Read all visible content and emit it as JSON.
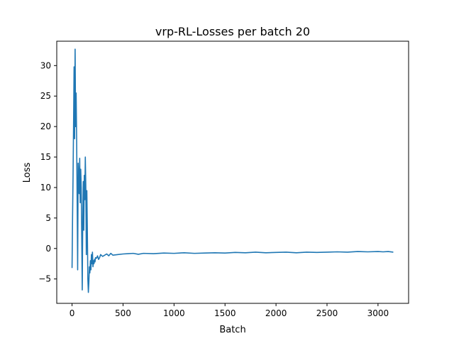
{
  "chart_data": {
    "type": "line",
    "title": "vrp-RL-Losses per batch 20",
    "xlabel": "Batch",
    "ylabel": "Loss",
    "xlim": [
      -150,
      3300
    ],
    "ylim": [
      -9,
      34
    ],
    "xticks": [
      0,
      500,
      1000,
      1500,
      2000,
      2500,
      3000
    ],
    "yticks": [
      -5,
      0,
      5,
      10,
      15,
      20,
      25,
      30
    ],
    "grid": false,
    "legend": "none",
    "series": [
      {
        "color": "#1f77b4",
        "x": [
          0,
          5,
          10,
          15,
          20,
          25,
          30,
          35,
          40,
          45,
          50,
          55,
          60,
          65,
          70,
          75,
          80,
          85,
          90,
          95,
          100,
          105,
          110,
          115,
          120,
          125,
          130,
          135,
          140,
          145,
          150,
          155,
          160,
          165,
          170,
          175,
          180,
          185,
          190,
          195,
          200,
          205,
          210,
          215,
          220,
          225,
          230,
          240,
          250,
          260,
          270,
          280,
          300,
          320,
          340,
          360,
          380,
          400,
          450,
          500,
          550,
          600,
          650,
          700,
          800,
          900,
          1000,
          1100,
          1200,
          1300,
          1400,
          1500,
          1600,
          1700,
          1800,
          1900,
          2000,
          2100,
          2200,
          2300,
          2400,
          2500,
          2600,
          2700,
          2800,
          2900,
          3000,
          3050,
          3100,
          3150
        ],
        "y": [
          -3.2,
          5,
          12,
          20.5,
          29.8,
          18,
          32.7,
          20,
          25.5,
          18,
          8,
          -3.5,
          14,
          12,
          9,
          14.8,
          7.5,
          13,
          10,
          2,
          -6.8,
          5,
          11,
          3,
          12,
          8,
          15,
          10,
          -1,
          9.5,
          3,
          -5,
          -7.2,
          -5.5,
          -3,
          -4,
          -2,
          -3.5,
          -1,
          -2.5,
          -0.6,
          -3,
          -2,
          -2.5,
          -1.8,
          -2.2,
          -1.5,
          -1.6,
          -1.2,
          -1.8,
          -1.5,
          -1,
          -1.3,
          -1.1,
          -0.9,
          -1.2,
          -0.8,
          -1.1,
          -1,
          -0.9,
          -0.85,
          -0.8,
          -0.95,
          -0.8,
          -0.85,
          -0.75,
          -0.8,
          -0.7,
          -0.8,
          -0.75,
          -0.7,
          -0.75,
          -0.65,
          -0.7,
          -0.6,
          -0.7,
          -0.65,
          -0.6,
          -0.7,
          -0.6,
          -0.65,
          -0.6,
          -0.55,
          -0.6,
          -0.5,
          -0.55,
          -0.5,
          -0.55,
          -0.5,
          -0.6
        ]
      }
    ]
  }
}
